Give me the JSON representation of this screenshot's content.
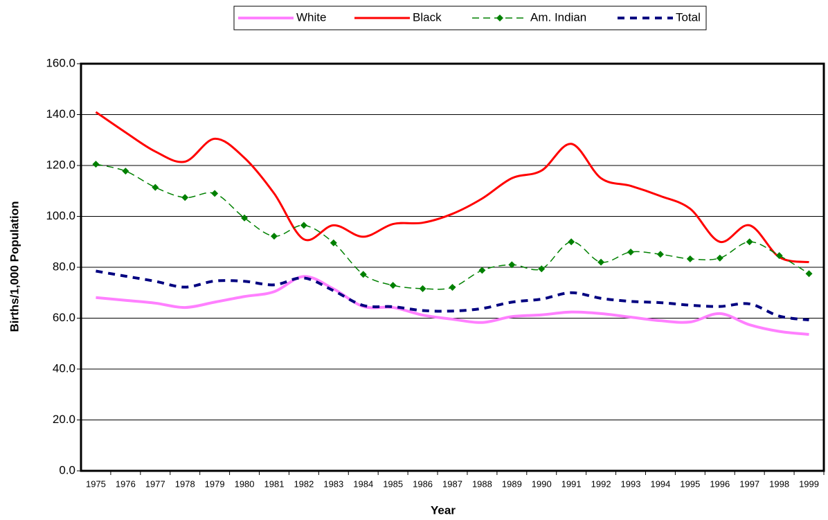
{
  "chart_data": {
    "type": "line",
    "x_label": "Year",
    "y_label": "Births/1,000 Population",
    "categories": [
      "1975",
      "1976",
      "1977",
      "1978",
      "1979",
      "1980",
      "1981",
      "1982",
      "1983",
      "1984",
      "1985",
      "1986",
      "1987",
      "1988",
      "1989",
      "1990",
      "1991",
      "1992",
      "1993",
      "1994",
      "1995",
      "1996",
      "1997",
      "1998",
      "1999"
    ],
    "series": [
      {
        "name": "White",
        "color": "#ff80ff",
        "line_style": "solid",
        "line_width": 4,
        "marker": "none",
        "values": [
          68.1,
          67,
          65.9,
          64.2,
          66.3,
          68.5,
          70.4,
          76.4,
          71.5,
          64.6,
          64.2,
          61.2,
          59.6,
          58.3,
          60.6,
          61.3,
          62.4,
          61.8,
          60.4,
          59,
          58.5,
          61.8,
          57.4,
          54.8,
          53.6
        ]
      },
      {
        "name": "Black",
        "color": "#ff0000",
        "line_style": "solid",
        "line_width": 3,
        "marker": "none",
        "values": [
          141,
          133,
          125.5,
          121.5,
          130.5,
          123,
          109,
          91,
          96.5,
          92,
          97,
          97.5,
          101,
          107,
          115,
          118,
          128.5,
          115,
          112,
          108,
          103,
          90,
          96.5,
          84,
          82
        ]
      },
      {
        "name": "Am. Indian",
        "color": "#008000",
        "line_style": "dashed",
        "line_width": 1.5,
        "marker": "diamond",
        "values": [
          120.5,
          117.8,
          111.4,
          107.4,
          109,
          99.4,
          92.2,
          96.5,
          89.6,
          77.2,
          72.9,
          71.6,
          72.1,
          78.8,
          81,
          79.4,
          90,
          82,
          86,
          85.1,
          83.3,
          83.6,
          90,
          84.6,
          77.5
        ]
      },
      {
        "name": "Total",
        "color": "#000080",
        "line_style": "dotted",
        "line_width": 4,
        "marker": "none",
        "values": [
          78.5,
          76.5,
          74.5,
          72.2,
          74.6,
          74.5,
          73.1,
          75.8,
          70.8,
          65,
          64.5,
          63,
          62.8,
          63.8,
          66.3,
          67.5,
          70,
          67.8,
          66.6,
          66.1,
          65.1,
          64.6,
          65.6,
          60.8,
          59.3
        ]
      }
    ],
    "ylim": [
      0,
      160
    ],
    "yticks": [
      {
        "value": 0,
        "label": "0.0"
      },
      {
        "value": 20,
        "label": "20.0"
      },
      {
        "value": 40,
        "label": "40.0"
      },
      {
        "value": 60,
        "label": "60.0"
      },
      {
        "value": 80,
        "label": "80.0"
      },
      {
        "value": 100,
        "label": "100.0"
      },
      {
        "value": 120,
        "label": "120.0"
      },
      {
        "value": 140,
        "label": "140.0"
      },
      {
        "value": 160,
        "label": "160.0"
      }
    ],
    "grid": true,
    "legend": "top"
  }
}
